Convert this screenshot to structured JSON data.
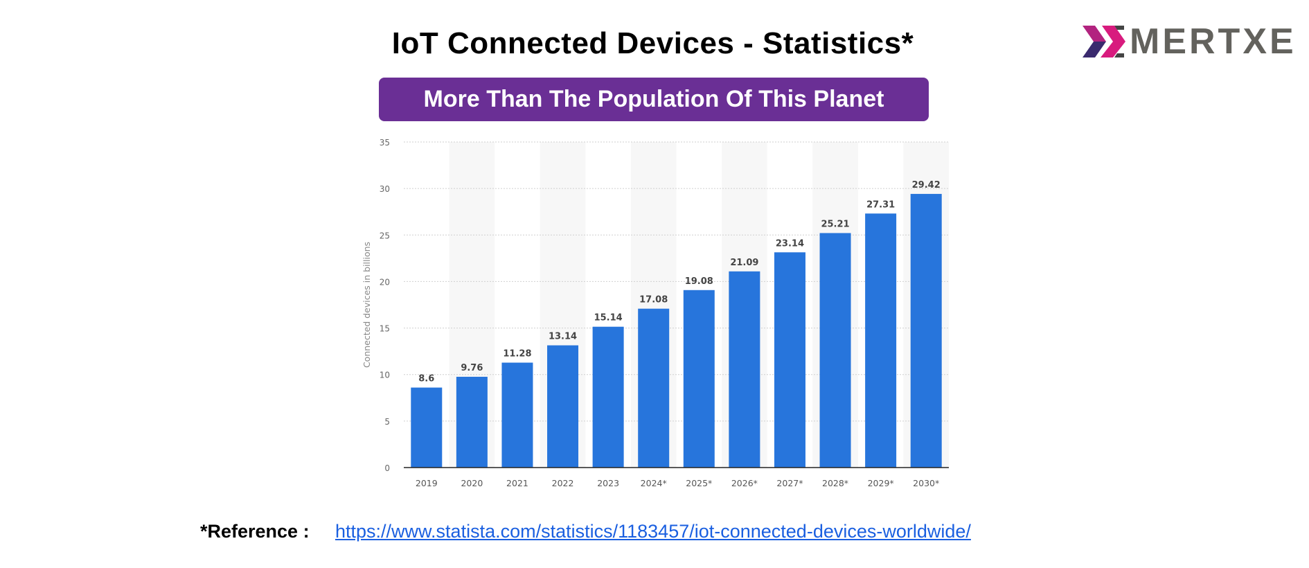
{
  "title": "IoT Connected Devices - Statistics*",
  "subtitle": "More Than The Population Of This Planet",
  "logo": {
    "text": "MERTXE",
    "brand": "EMERTXE",
    "colors": [
      "#b2237f",
      "#3a2a6e",
      "#63625d"
    ]
  },
  "reference": {
    "label": "*Reference :",
    "link": "https://www.statista.com/statistics/1183457/iot-connected-devices-worldwide/"
  },
  "chart_data": {
    "type": "bar",
    "categories": [
      "2019",
      "2020",
      "2021",
      "2022",
      "2023",
      "2024*",
      "2025*",
      "2026*",
      "2027*",
      "2028*",
      "2029*",
      "2030*"
    ],
    "values": [
      8.6,
      9.76,
      11.28,
      13.14,
      15.14,
      17.08,
      19.08,
      21.09,
      23.14,
      25.21,
      27.31,
      29.42
    ],
    "data_labels": [
      "8.6",
      "9.76",
      "11.28",
      "13.14",
      "15.14",
      "17.08",
      "19.08",
      "21.09",
      "23.14",
      "25.21",
      "27.31",
      "29.42"
    ],
    "ylabel": "Connected devices in billions",
    "xlabel": "",
    "ylim": [
      0,
      35
    ],
    "yticks": [
      0,
      5,
      10,
      15,
      20,
      25,
      30,
      35
    ],
    "grid": true,
    "bar_color": "#2775dc"
  }
}
